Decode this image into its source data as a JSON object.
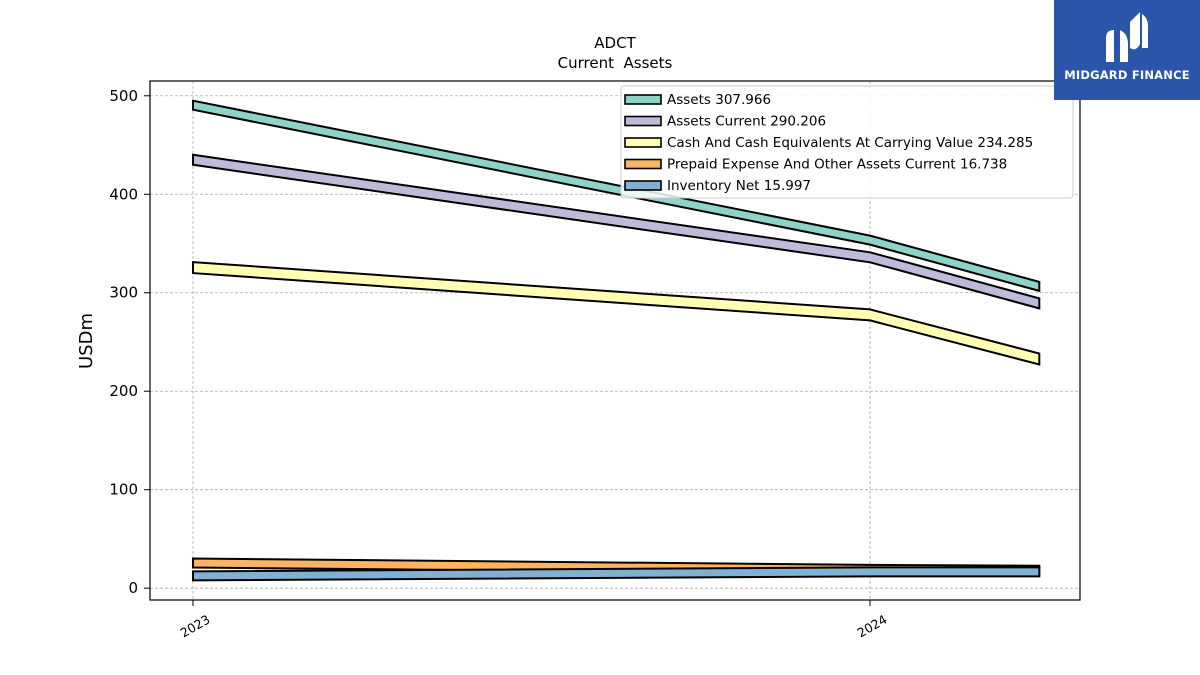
{
  "brand": {
    "name": "MIDGARD FINANCE",
    "color": "#2a55a8"
  },
  "chart_data": {
    "type": "area",
    "title": "ADCT",
    "subtitle": "Current  Assets",
    "xlabel": "",
    "ylabel": "USDm",
    "x_ticks": [
      "2023",
      "2024"
    ],
    "x": [
      "2023",
      "2024",
      "2024.25"
    ],
    "ylim": [
      -12,
      515
    ],
    "y_ticks": [
      0,
      100,
      200,
      300,
      400,
      500
    ],
    "grid": true,
    "legend_position": "top-right",
    "series": [
      {
        "name": "Assets  307.966",
        "color": "#8dd3c7",
        "values": [
          492,
          355,
          307.966
        ]
      },
      {
        "name": "Assets Current  290.206",
        "color": "#bebada",
        "values": [
          436,
          337,
          290.206
        ]
      },
      {
        "name": "Cash And Cash Equivalents At Carrying Value  234.285",
        "color": "#ffffb3",
        "values": [
          327,
          279,
          234.285
        ]
      },
      {
        "name": "Prepaid Expense And Other Assets Current  16.738",
        "color": "#fdb462",
        "values": [
          24,
          17.5,
          16.738
        ]
      },
      {
        "name": "Inventory Net  15.997",
        "color": "#80b1d3",
        "values": [
          12,
          16,
          15.997
        ]
      }
    ]
  }
}
